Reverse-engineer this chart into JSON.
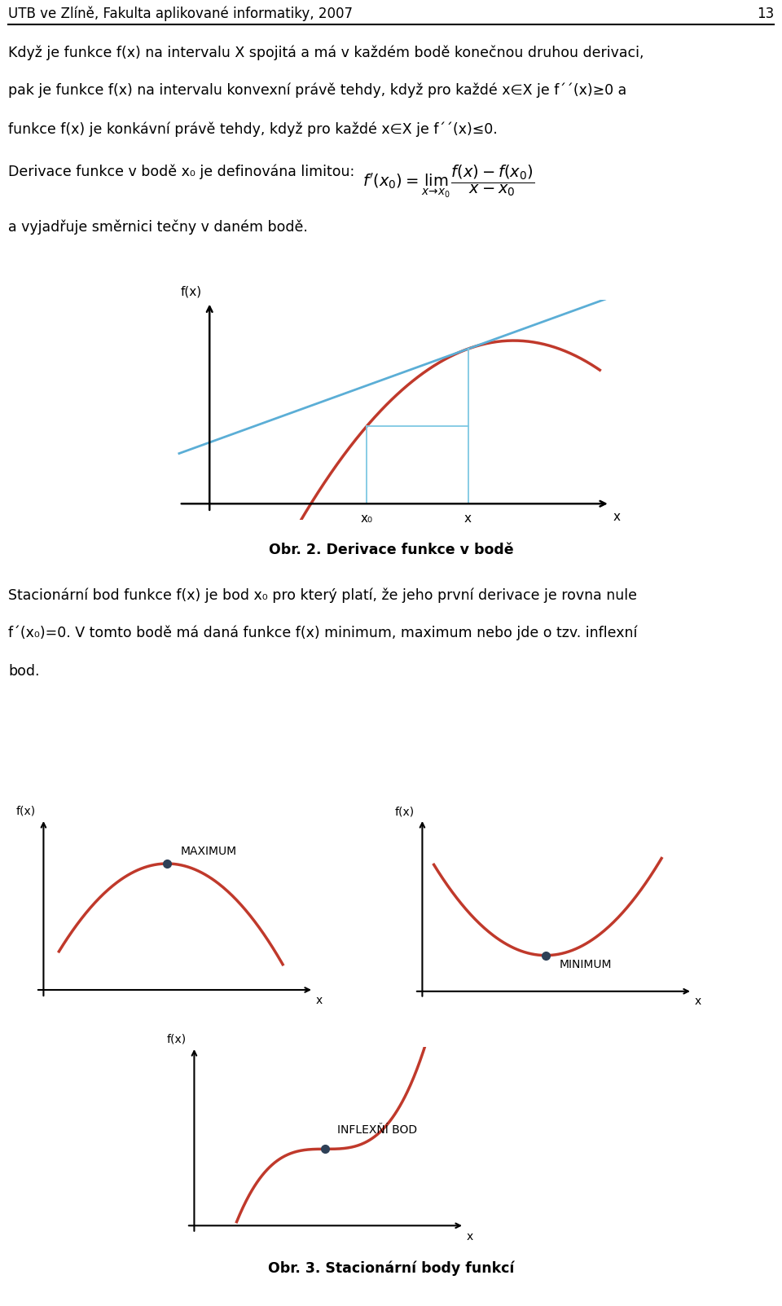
{
  "title_text": "UTB ve Zlíně, Fakulta aplikované informatiky, 2007",
  "page_number": "13",
  "bg_color": "#ffffff",
  "text_color": "#000000",
  "curve_color": "#c0392b",
  "tangent_color": "#5baed6",
  "dashed_color": "#7ec8e3",
  "dot_color": "#2e4057",
  "para1": "Když je funkce f(x) na intervalu X spojitá a má v každém bodě konečnou druhou derivaci,",
  "para2": "pak je funkce f(x) na intervalu konvexní právě tehdy, když pro každé x∈X je f´´(x)≥0 a",
  "para3": "funkce f(x) je konkávní právě tehdy, když pro každé x∈X je f´´(x)≤0.",
  "deriv_label": "Derivace funkce v bodě x₀ je definována limitou:",
  "deriv_formula": "$f'(x_0) = \\lim_{x \\to x_0} \\dfrac{f(x)-f(x_0)}{x-x_0}$",
  "vyjadrue": "a vyjadřuje směrnici tečny v daném bodě.",
  "obr2_label": "Obr. 2. Derivace funkce v bodě",
  "obr3_label": "Obr. 3. Stacionární body funkcí",
  "stac1": "Stacionární bod funkce f(x) je bod x₀ pro který platí, že jeho první derivace je rovna nule",
  "stac2": "f´(x₀)=0. V tomto bodě má daná funkce f(x) minimum, maximum nebo jde o tzv. inflexní",
  "stac3": "bod.",
  "max_label": "MAXIMUM",
  "min_label": "MINIMUM",
  "infl_label": "INFLEXŇÍ BOD"
}
